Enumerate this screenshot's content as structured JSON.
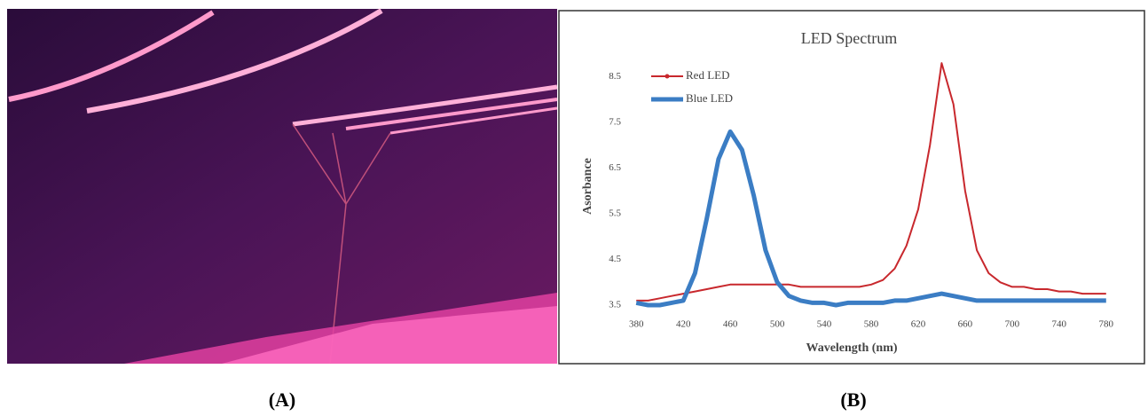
{
  "panel_labels": [
    "(A)",
    "(B)"
  ],
  "chart_data": {
    "type": "line",
    "title": "LED Spectrum",
    "x_label": "Wavelength (nm)",
    "y_label": "Asorbance",
    "x": [
      380,
      390,
      400,
      410,
      420,
      430,
      440,
      450,
      460,
      470,
      480,
      490,
      500,
      510,
      520,
      530,
      540,
      550,
      560,
      570,
      580,
      590,
      600,
      610,
      620,
      630,
      640,
      650,
      660,
      670,
      680,
      690,
      700,
      710,
      720,
      730,
      740,
      750,
      760,
      770,
      780
    ],
    "series": [
      {
        "name": "Red LED",
        "color": "#c8282d",
        "values": [
          3.6,
          3.6,
          3.65,
          3.7,
          3.75,
          3.8,
          3.85,
          3.9,
          3.95,
          3.95,
          3.95,
          3.95,
          3.95,
          3.95,
          3.9,
          3.9,
          3.9,
          3.9,
          3.9,
          3.9,
          3.95,
          4.05,
          4.3,
          4.8,
          5.6,
          7.0,
          8.8,
          7.9,
          6.0,
          4.7,
          4.2,
          4.0,
          3.9,
          3.9,
          3.85,
          3.85,
          3.8,
          3.8,
          3.75,
          3.75,
          3.75
        ]
      },
      {
        "name": "Blue LED",
        "color": "#3b7dc4",
        "values": [
          3.55,
          3.5,
          3.5,
          3.55,
          3.6,
          4.2,
          5.4,
          6.7,
          7.3,
          6.9,
          5.9,
          4.7,
          4.0,
          3.7,
          3.6,
          3.55,
          3.55,
          3.5,
          3.55,
          3.55,
          3.55,
          3.55,
          3.6,
          3.6,
          3.65,
          3.7,
          3.75,
          3.7,
          3.65,
          3.6,
          3.6,
          3.6,
          3.6,
          3.6,
          3.6,
          3.6,
          3.6,
          3.6,
          3.6,
          3.6,
          3.6
        ]
      }
    ],
    "xlim": [
      370,
      790
    ],
    "xticks": [
      380,
      420,
      460,
      500,
      540,
      580,
      620,
      660,
      700,
      740,
      780
    ],
    "ylim": [
      3.5,
      8.9
    ],
    "yticks": [
      3.5,
      4.5,
      5.5,
      6.5,
      7.5,
      8.5
    ],
    "legend": "upper left"
  }
}
